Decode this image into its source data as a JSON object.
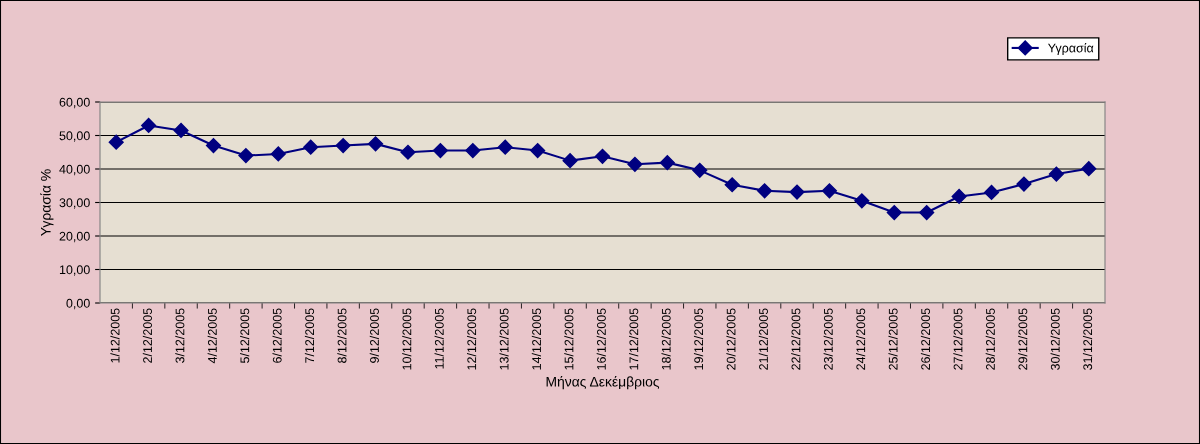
{
  "chart_data": {
    "type": "line",
    "xlabel": "Μήνας Δεκέμβριος",
    "ylabel": "Υγρασία %",
    "categories": [
      "1/12/2005",
      "2/12/2005",
      "3/12/2005",
      "4/12/2005",
      "5/12/2005",
      "6/12/2005",
      "7/12/2005",
      "8/12/2005",
      "9/12/2005",
      "10/12/2005",
      "11/12/2005",
      "12/12/2005",
      "13/12/2005",
      "14/12/2005",
      "15/12/2005",
      "16/12/2005",
      "17/12/2005",
      "18/12/2005",
      "19/12/2005",
      "20/12/2005",
      "21/12/2005",
      "22/12/2005",
      "23/12/2005",
      "24/12/2005",
      "25/12/2005",
      "26/12/2005",
      "27/12/2005",
      "28/12/2005",
      "29/12/2005",
      "30/12/2005",
      "31/12/2005"
    ],
    "series": [
      {
        "name": "Υγρασία",
        "color": "#000080",
        "values": [
          48,
          53,
          51.5,
          47,
          44,
          44.5,
          46.5,
          47,
          47.5,
          45,
          45.5,
          45.5,
          46.5,
          45.5,
          42.5,
          43.8,
          41.4,
          41.9,
          39.6,
          35.3,
          33.5,
          33.1,
          33.5,
          30.5,
          27,
          27,
          31.8,
          33,
          35.5,
          38.5,
          40.1
        ]
      }
    ],
    "ylim": [
      0,
      60
    ],
    "yticks": [
      {
        "value": 0,
        "label": "0,00"
      },
      {
        "value": 10,
        "label": "10,00"
      },
      {
        "value": 20,
        "label": "20,00"
      },
      {
        "value": 30,
        "label": "30,00"
      },
      {
        "value": 40,
        "label": "40,00"
      },
      {
        "value": 50,
        "label": "50,00"
      },
      {
        "value": 60,
        "label": "60,00"
      }
    ],
    "grid": "y",
    "legend": "top right",
    "marker": "diamond",
    "line_style": "solid"
  }
}
